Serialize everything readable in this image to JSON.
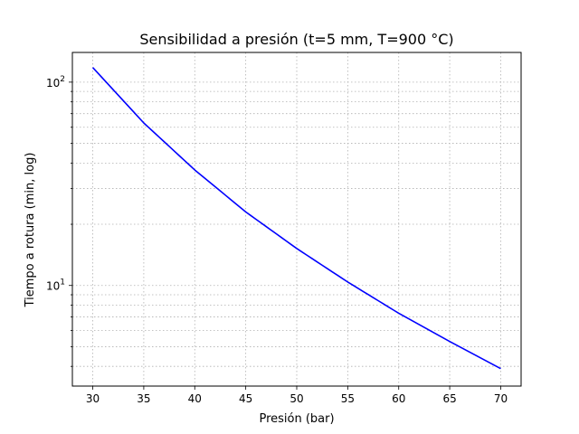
{
  "chart_data": {
    "type": "line",
    "title": "Sensibilidad a presión (t=5 mm, T=900 °C)",
    "xlabel": "Presión (bar)",
    "ylabel": "Tiempo a rotura (min, log)",
    "xlim": [
      28,
      72
    ],
    "ylim": [
      3.2,
      140
    ],
    "yscale": "log",
    "grid": true,
    "x_ticks": [
      30,
      35,
      40,
      45,
      50,
      55,
      60,
      65,
      70
    ],
    "y_major_ticks": [
      10,
      100
    ],
    "y_tick_labels": [
      {
        "base": "10",
        "exp": "1"
      },
      {
        "base": "10",
        "exp": "2"
      }
    ],
    "series": [
      {
        "color": "#0000ff",
        "x": [
          30,
          35,
          40,
          45,
          50,
          55,
          60,
          65,
          70
        ],
        "y": [
          118,
          63,
          37,
          23,
          15.2,
          10.4,
          7.3,
          5.3,
          3.9
        ]
      }
    ]
  }
}
